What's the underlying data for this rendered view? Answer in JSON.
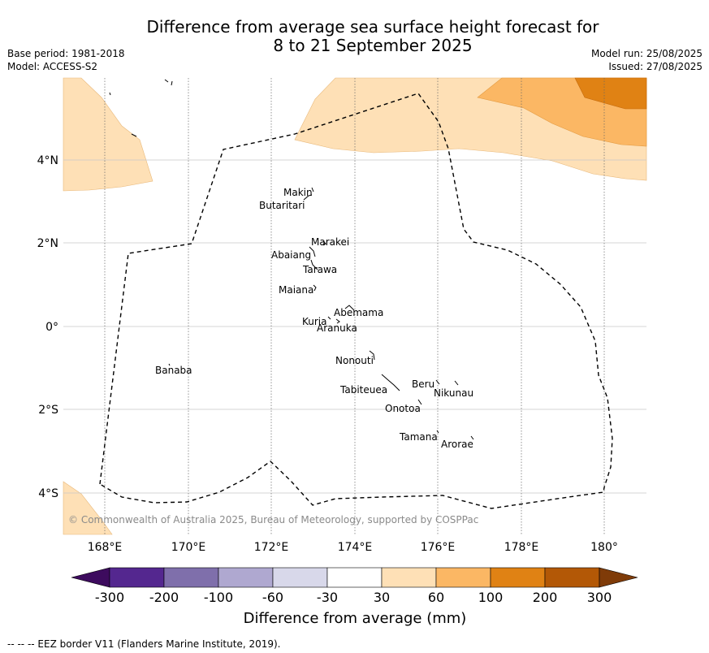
{
  "title_line1": "Difference from average sea surface height forecast for",
  "title_line2": "8 to 21 September 2025",
  "base_period": "Base period: 1981-2018",
  "model": "Model: ACCESS-S2",
  "model_run": "Model run: 25/08/2025",
  "issued": "Issued: 27/08/2025",
  "copyright": "© Commonwealth of Australia 2025, Bureau of Meteorology, supported by COSPPac",
  "x_ticks": [
    "168°E",
    "170°E",
    "172°E",
    "174°E",
    "176°E",
    "178°E",
    "180°"
  ],
  "y_ticks": [
    "4°N",
    "2°N",
    "0°",
    "2°S",
    "4°S"
  ],
  "islands": [
    "Makin",
    "Butaritari",
    "Marakei",
    "Abaiang",
    "Tarawa",
    "Maiana",
    "Abemama",
    "Kuria",
    "Aranuka",
    "Nonouti",
    "Beru",
    "Nikunau",
    "Tabiteuea",
    "Onotoa",
    "Tamana",
    "Arorae",
    "Banaba"
  ],
  "colorbar": {
    "labels": [
      "-300",
      "-200",
      "-100",
      "-60",
      "-30",
      "30",
      "60",
      "100",
      "200",
      "300"
    ],
    "colors": [
      "#3d0b5e",
      "#54278f",
      "#7f6fab",
      "#afa8d0",
      "#d8d8ea",
      "#ffffff",
      "#fee0b6",
      "#fbb764",
      "#e08214",
      "#b35806",
      "#7f3b08"
    ],
    "label": "Difference from average (mm)"
  },
  "footnote": "-- -- -- EEZ border V11 (Flanders Marine Institute, 2019)."
}
